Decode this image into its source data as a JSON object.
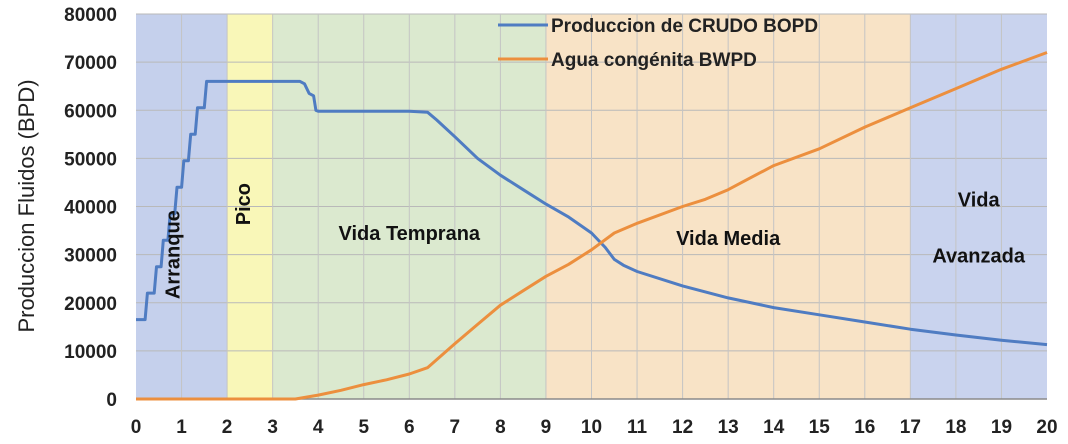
{
  "chart_data": {
    "type": "line",
    "ylabel": "Produccion Fluidos (BPD)",
    "xlabel": "",
    "xlim": [
      0,
      20
    ],
    "ylim": [
      0,
      80000
    ],
    "x_ticks": [
      0,
      1,
      2,
      3,
      4,
      5,
      6,
      7,
      8,
      9,
      10,
      11,
      12,
      13,
      14,
      15,
      16,
      17,
      18,
      19,
      20
    ],
    "y_ticks": [
      0,
      10000,
      20000,
      30000,
      40000,
      50000,
      60000,
      70000,
      80000
    ],
    "grid": true,
    "legend_position": "top-center",
    "phases": [
      {
        "name": "Arranque",
        "x0": 0,
        "x1": 2,
        "color": "#c5d0ec"
      },
      {
        "name": "Pico",
        "x0": 2,
        "x1": 3,
        "color": "#f9f7b8"
      },
      {
        "name": "Vida Temprana",
        "x0": 3,
        "x1": 9,
        "color": "#dbe9cf"
      },
      {
        "name": "Vida Media",
        "x0": 9,
        "x1": 17,
        "color": "#f8e3c6"
      },
      {
        "name": "Vida Avanzada",
        "label_lines": [
          "Vida",
          "Avanzada"
        ],
        "x0": 17,
        "x1": 20,
        "color": "#c9d3ee"
      }
    ],
    "series": [
      {
        "name": "Produccion de  CRUDO BOPD",
        "color": "#4f7cc2",
        "points": [
          [
            0,
            16500
          ],
          [
            0.2,
            16500
          ],
          [
            0.25,
            22000
          ],
          [
            0.4,
            22000
          ],
          [
            0.45,
            27500
          ],
          [
            0.55,
            27500
          ],
          [
            0.6,
            33000
          ],
          [
            0.7,
            33000
          ],
          [
            0.75,
            38500
          ],
          [
            0.85,
            38500
          ],
          [
            0.9,
            44000
          ],
          [
            1.0,
            44000
          ],
          [
            1.05,
            49500
          ],
          [
            1.15,
            49500
          ],
          [
            1.2,
            55000
          ],
          [
            1.3,
            55000
          ],
          [
            1.35,
            60500
          ],
          [
            1.5,
            60500
          ],
          [
            1.55,
            66000
          ],
          [
            2.0,
            66000
          ],
          [
            3.0,
            66000
          ],
          [
            3.6,
            66000
          ],
          [
            3.7,
            65500
          ],
          [
            3.8,
            63500
          ],
          [
            3.9,
            63000
          ],
          [
            3.95,
            60000
          ],
          [
            4.0,
            59800
          ],
          [
            5.0,
            59800
          ],
          [
            6.0,
            59800
          ],
          [
            6.4,
            59600
          ],
          [
            6.6,
            58000
          ],
          [
            7.0,
            54500
          ],
          [
            7.5,
            50000
          ],
          [
            8.0,
            46500
          ],
          [
            8.5,
            43500
          ],
          [
            9.0,
            40500
          ],
          [
            9.5,
            37800
          ],
          [
            10.0,
            34500
          ],
          [
            10.3,
            31500
          ],
          [
            10.5,
            29000
          ],
          [
            10.7,
            27800
          ],
          [
            11.0,
            26500
          ],
          [
            12.0,
            23500
          ],
          [
            13.0,
            21000
          ],
          [
            14.0,
            19000
          ],
          [
            15.0,
            17500
          ],
          [
            16.0,
            16000
          ],
          [
            17.0,
            14500
          ],
          [
            18.0,
            13300
          ],
          [
            19.0,
            12200
          ],
          [
            20.0,
            11300
          ]
        ]
      },
      {
        "name": "Agua congénita BWPD",
        "color": "#ec8f3e",
        "points": [
          [
            0,
            0
          ],
          [
            3.0,
            0
          ],
          [
            3.5,
            0
          ],
          [
            4.0,
            800
          ],
          [
            4.5,
            1800
          ],
          [
            5.0,
            3000
          ],
          [
            5.5,
            4000
          ],
          [
            6.0,
            5200
          ],
          [
            6.4,
            6500
          ],
          [
            7.0,
            11500
          ],
          [
            7.5,
            15500
          ],
          [
            8.0,
            19500
          ],
          [
            8.5,
            22500
          ],
          [
            9.0,
            25500
          ],
          [
            9.5,
            28000
          ],
          [
            10.0,
            31000
          ],
          [
            10.5,
            34500
          ],
          [
            11.0,
            36500
          ],
          [
            12.0,
            40000
          ],
          [
            12.5,
            41500
          ],
          [
            13.0,
            43500
          ],
          [
            13.5,
            46000
          ],
          [
            14.0,
            48500
          ],
          [
            15.0,
            52000
          ],
          [
            16.0,
            56500
          ],
          [
            17.0,
            60500
          ],
          [
            18.0,
            64500
          ],
          [
            19.0,
            68500
          ],
          [
            20.0,
            72000
          ]
        ]
      }
    ]
  }
}
